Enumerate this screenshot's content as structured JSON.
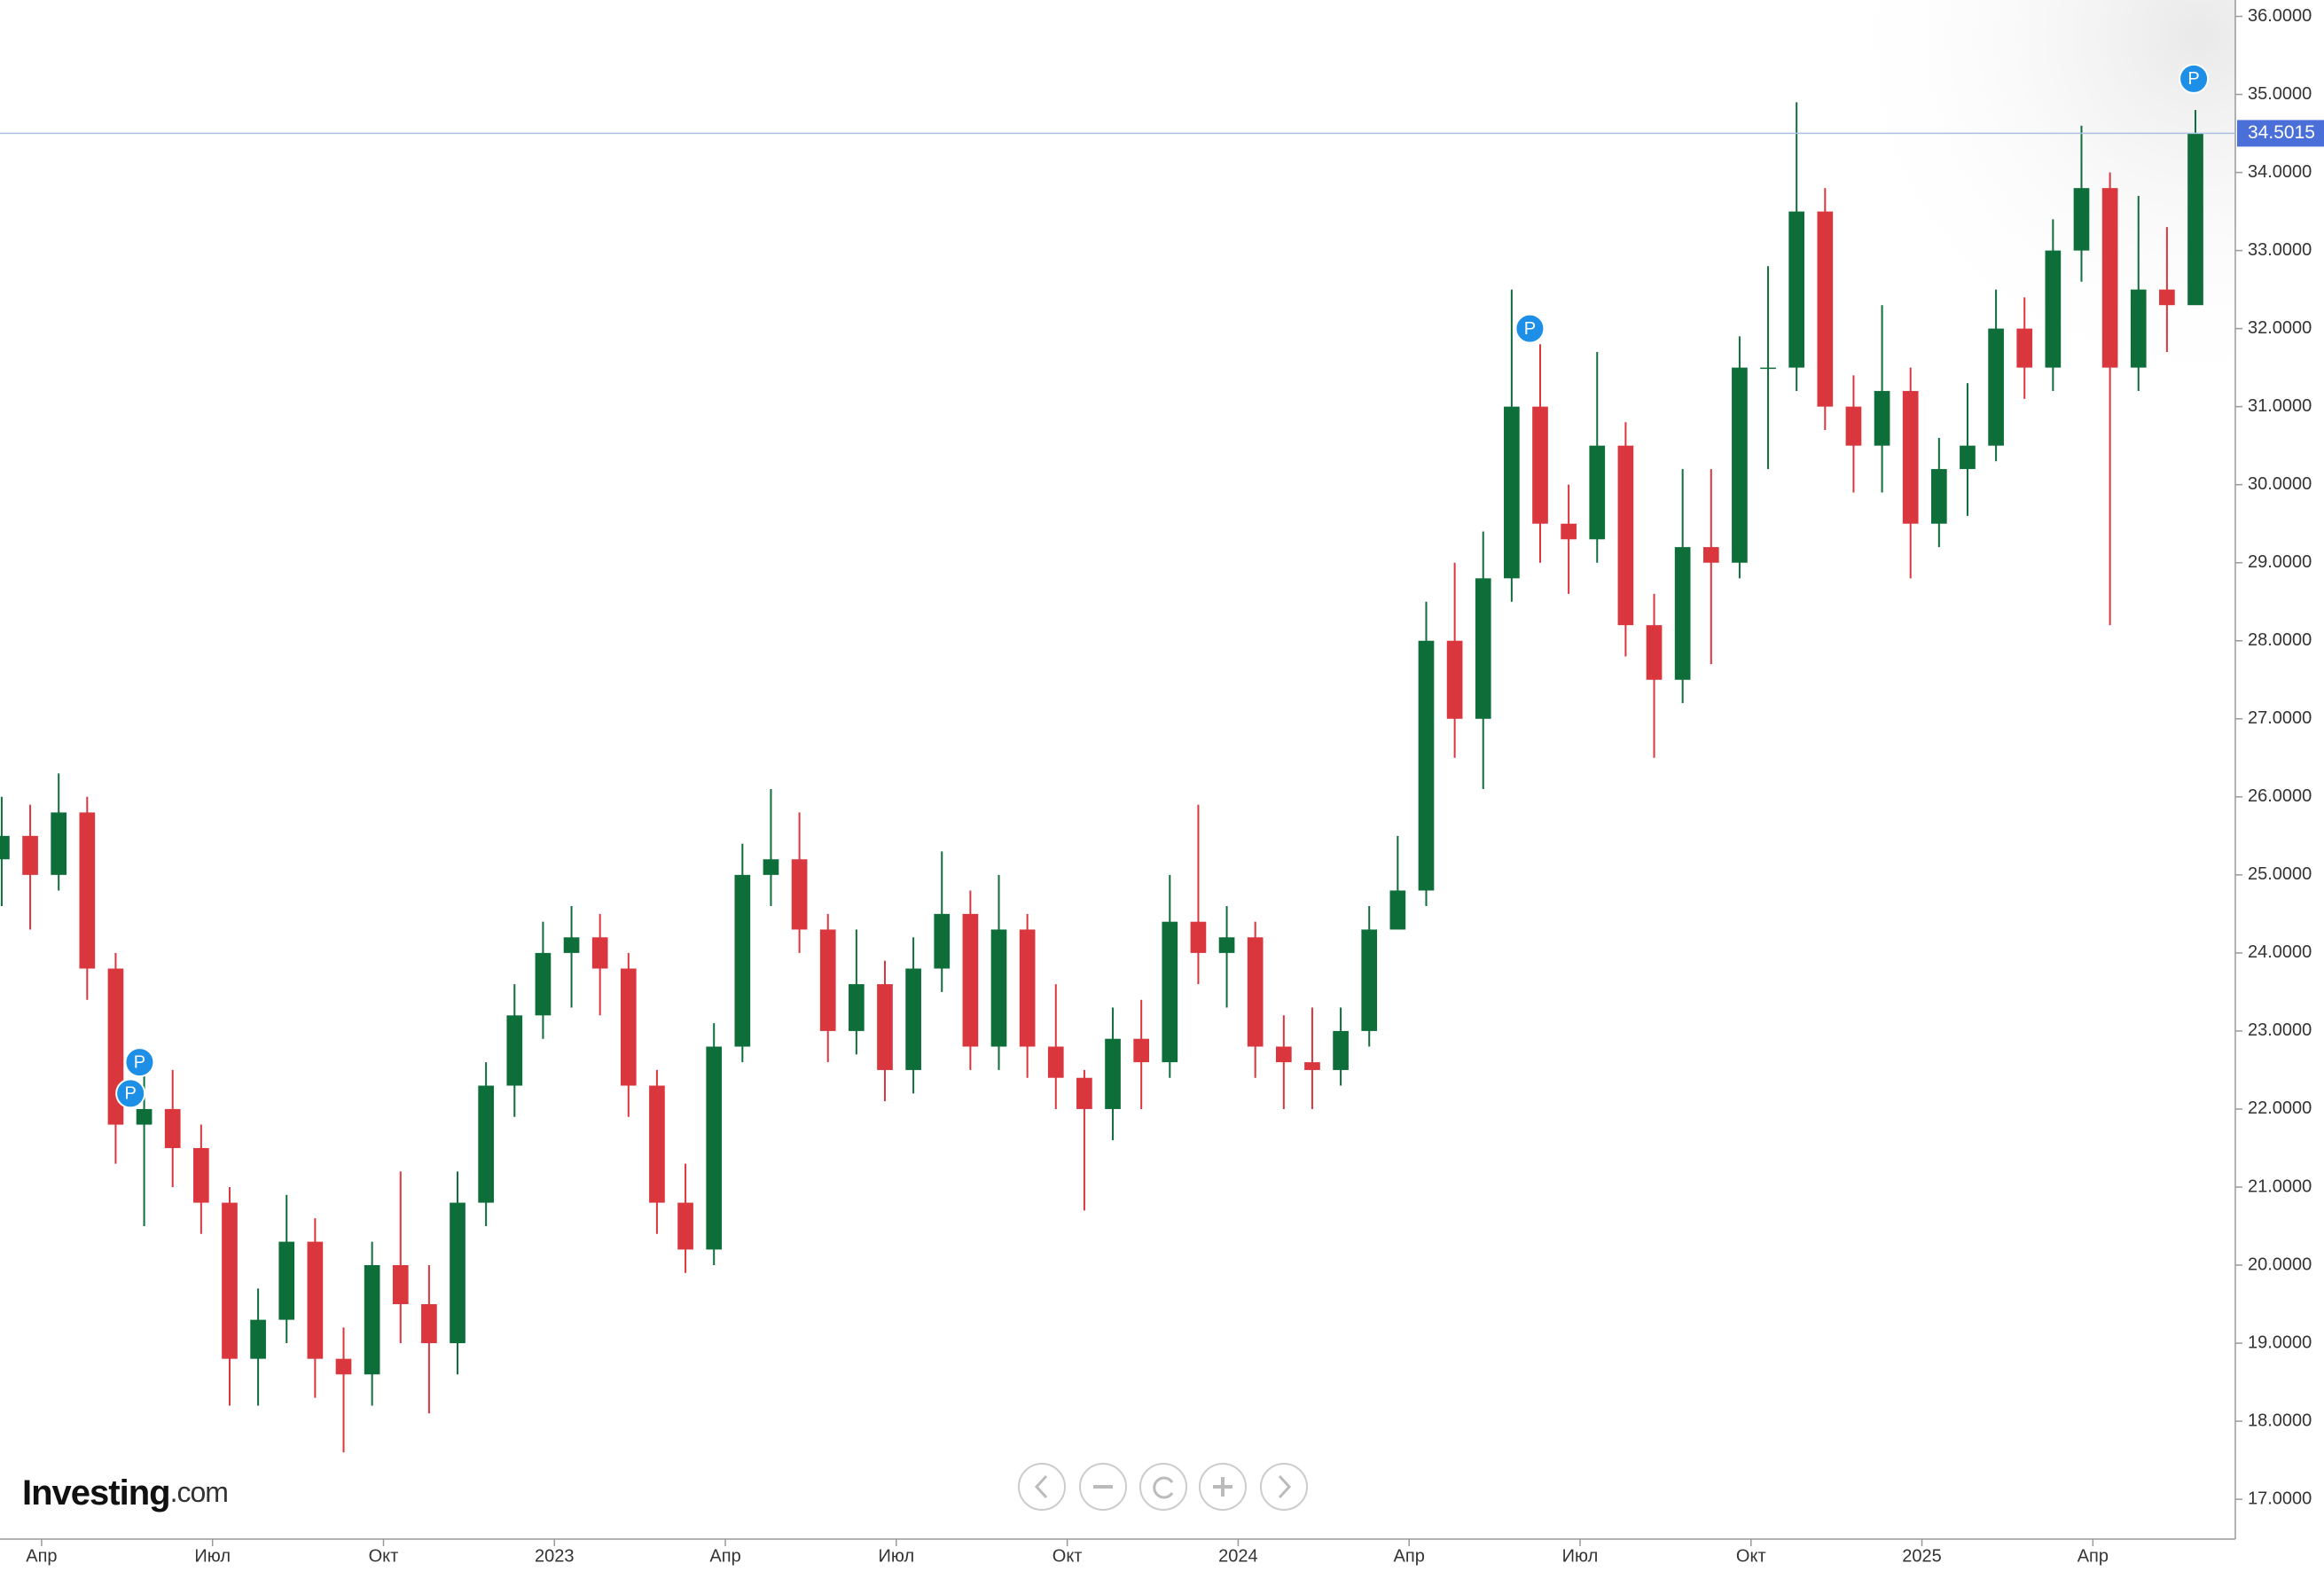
{
  "chart_data": {
    "type": "candlestick",
    "logo_main": "Investing",
    "logo_suffix": ".com",
    "up_color": "#0d6e3a",
    "down_color": "#d9363e",
    "candles": {
      "x": [
        2.3,
        2.8,
        3.3,
        3.8,
        4.3,
        4.8,
        5.3,
        5.8,
        6.3,
        6.8,
        7.3,
        7.8,
        8.3,
        8.8,
        9.3,
        9.8,
        10.3,
        10.8,
        11.3,
        11.8,
        12.3,
        12.8,
        13.3,
        13.8,
        14.3,
        14.8,
        15.3,
        15.8,
        16.3,
        16.8,
        17.3,
        17.8,
        18.3,
        18.8,
        19.3,
        19.8,
        20.3,
        20.8,
        21.3,
        21.8,
        22.3,
        22.8,
        23.3,
        23.8,
        24.3,
        24.8,
        25.3,
        25.8,
        26.3,
        26.8,
        27.3,
        27.8,
        28.3,
        28.8,
        29.3,
        29.8,
        30.3,
        30.8,
        31.3,
        31.8,
        32.3,
        32.8,
        33.3,
        33.8,
        34.3,
        34.8,
        35.3,
        35.8,
        36.3,
        36.8,
        37.3,
        37.8,
        38.3,
        38.8,
        39.3,
        39.8,
        40.3,
        40.8
      ],
      "open": [
        25.2,
        25.5,
        25.0,
        25.8,
        23.8,
        21.8,
        22.0,
        21.5,
        20.8,
        18.8,
        19.3,
        20.3,
        18.8,
        18.6,
        20.0,
        19.5,
        19.0,
        20.8,
        22.3,
        23.2,
        24.0,
        24.2,
        23.8,
        22.3,
        20.8,
        20.2,
        22.8,
        25.0,
        25.2,
        24.3,
        23.0,
        23.6,
        22.5,
        23.8,
        24.5,
        22.8,
        24.3,
        22.8,
        22.4,
        22.0,
        22.9,
        22.6,
        24.4,
        24.0,
        24.2,
        22.8,
        22.6,
        22.5,
        23.0,
        24.3,
        24.8,
        28.0,
        27.0,
        28.8,
        31.0,
        29.5,
        29.3,
        30.5,
        28.2,
        27.5,
        29.2,
        29.0,
        31.5,
        31.5,
        33.5,
        31.0,
        30.5,
        31.2,
        29.5,
        30.2,
        30.5,
        32.0,
        31.5,
        33.0,
        33.8,
        31.5,
        32.5,
        32.3
      ],
      "high": [
        26.0,
        25.9,
        26.3,
        26.0,
        24.0,
        22.6,
        22.5,
        21.8,
        21.0,
        19.7,
        20.9,
        20.6,
        19.2,
        20.3,
        21.2,
        20.0,
        21.2,
        22.6,
        23.6,
        24.4,
        24.6,
        24.5,
        24.0,
        22.5,
        21.3,
        23.1,
        25.4,
        26.1,
        25.8,
        24.5,
        24.3,
        23.9,
        24.2,
        25.3,
        24.8,
        25.0,
        24.5,
        23.6,
        22.5,
        23.3,
        23.4,
        25.0,
        25.9,
        24.6,
        24.4,
        23.2,
        23.3,
        23.3,
        24.6,
        25.5,
        28.5,
        29.0,
        29.4,
        32.5,
        31.8,
        30.0,
        31.7,
        30.8,
        28.6,
        30.2,
        30.2,
        31.9,
        32.8,
        34.9,
        33.8,
        31.4,
        32.3,
        31.5,
        30.6,
        31.3,
        32.5,
        32.4,
        33.4,
        34.6,
        34.0,
        33.7,
        33.3,
        34.8
      ],
      "low": [
        24.6,
        24.3,
        24.8,
        23.4,
        21.3,
        20.5,
        21.0,
        20.4,
        18.2,
        18.2,
        19.0,
        18.3,
        17.6,
        18.2,
        19.0,
        18.1,
        18.6,
        20.5,
        21.9,
        22.9,
        23.3,
        23.2,
        21.9,
        20.4,
        19.9,
        20.0,
        22.6,
        24.6,
        24.0,
        22.6,
        22.7,
        22.1,
        22.2,
        23.5,
        22.5,
        22.5,
        22.4,
        22.0,
        20.7,
        21.6,
        22.0,
        22.4,
        23.6,
        23.3,
        22.4,
        22.0,
        22.0,
        22.3,
        22.8,
        24.3,
        24.6,
        26.5,
        26.1,
        28.5,
        29.0,
        28.6,
        29.0,
        27.8,
        26.5,
        27.2,
        27.7,
        28.8,
        30.2,
        31.2,
        30.7,
        29.9,
        29.9,
        28.8,
        29.2,
        29.6,
        30.3,
        31.1,
        31.2,
        32.6,
        28.2,
        31.2,
        31.7,
        32.8
      ],
      "close": [
        25.5,
        25.0,
        25.8,
        23.8,
        21.8,
        22.0,
        21.5,
        20.8,
        18.8,
        19.3,
        20.3,
        18.8,
        18.6,
        20.0,
        19.5,
        19.0,
        20.8,
        22.3,
        23.2,
        24.0,
        24.2,
        23.8,
        22.3,
        20.8,
        20.2,
        22.8,
        25.0,
        25.2,
        24.3,
        23.0,
        23.6,
        22.5,
        23.8,
        24.5,
        22.8,
        24.3,
        22.8,
        22.4,
        22.0,
        22.9,
        22.6,
        24.4,
        24.0,
        24.2,
        22.8,
        22.6,
        22.5,
        23.0,
        24.3,
        24.8,
        28.0,
        27.0,
        28.8,
        31.0,
        29.5,
        29.3,
        30.5,
        28.2,
        27.5,
        29.2,
        29.0,
        31.5,
        31.5,
        33.5,
        31.0,
        30.5,
        31.2,
        29.5,
        30.2,
        30.5,
        32.0,
        31.5,
        33.0,
        33.8,
        31.5,
        32.5,
        32.3,
        34.5
      ]
    },
    "last_price": 34.5015,
    "annotations": [
      {
        "x": 4.56,
        "y": 22.2,
        "label": "P"
      },
      {
        "x": 4.72,
        "y": 22.6,
        "label": "P"
      },
      {
        "x": 29.12,
        "y": 32.0,
        "label": "P"
      },
      {
        "x": 40.77,
        "y": 35.2,
        "label": "P"
      }
    ],
    "xlim": [
      2.27,
      41.5
    ],
    "xticks": [
      {
        "value": 3,
        "label": "Апр"
      },
      {
        "value": 6,
        "label": "Июл"
      },
      {
        "value": 9,
        "label": "Окт"
      },
      {
        "value": 12,
        "label": "2023"
      },
      {
        "value": 15,
        "label": "Апр"
      },
      {
        "value": 18,
        "label": "Июл"
      },
      {
        "value": 21,
        "label": "Окт"
      },
      {
        "value": 24,
        "label": "2024"
      },
      {
        "value": 27,
        "label": "Апр"
      },
      {
        "value": 30,
        "label": "Июл"
      },
      {
        "value": 33,
        "label": "Окт"
      },
      {
        "value": 36,
        "label": "2025"
      },
      {
        "value": 39,
        "label": "Апр"
      }
    ],
    "ylim": [
      16.49,
      36.21
    ],
    "yticks": [
      {
        "value": 17,
        "label": "17.0000"
      },
      {
        "value": 18,
        "label": "18.0000"
      },
      {
        "value": 19,
        "label": "19.0000"
      },
      {
        "value": 20,
        "label": "20.0000"
      },
      {
        "value": 21,
        "label": "21.0000"
      },
      {
        "value": 22,
        "label": "22.0000"
      },
      {
        "value": 23,
        "label": "23.0000"
      },
      {
        "value": 24,
        "label": "24.0000"
      },
      {
        "value": 25,
        "label": "25.0000"
      },
      {
        "value": 26,
        "label": "26.0000"
      },
      {
        "value": 27,
        "label": "27.0000"
      },
      {
        "value": 28,
        "label": "28.0000"
      },
      {
        "value": 29,
        "label": "29.0000"
      },
      {
        "value": 30,
        "label": "30.0000"
      },
      {
        "value": 31,
        "label": "31.0000"
      },
      {
        "value": 32,
        "label": "32.0000"
      },
      {
        "value": 33,
        "label": "33.0000"
      },
      {
        "value": 34,
        "label": "34.0000"
      },
      {
        "value": 35,
        "label": "35.0000"
      },
      {
        "value": 36,
        "label": "36.0000"
      }
    ]
  }
}
